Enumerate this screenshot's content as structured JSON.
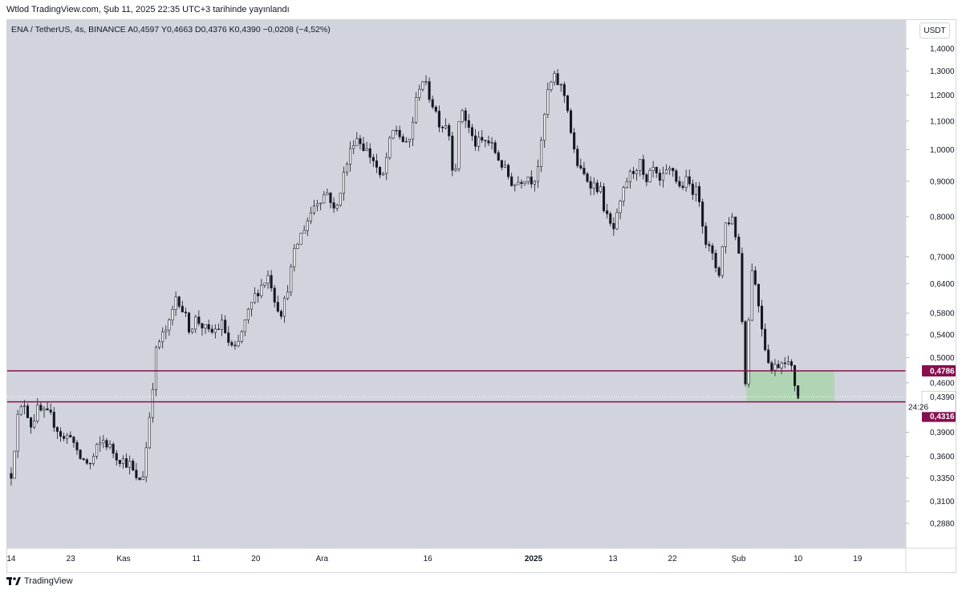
{
  "header": {
    "publish_line": "Wtlod TradingView.com, Şub 11, 2025 22:35 UTC+3 tarihinde yayınlandı"
  },
  "legend": {
    "symbol_line": "ENA / TetherUS, 4s, BINANCE  A0,4597  Y0,4663  D0,4376  K0,4390  −0,0208 (−4,52%)"
  },
  "currency_button": {
    "label": "USDT"
  },
  "footer": {
    "brand": "TradingView"
  },
  "colors": {
    "plot_bg": "#d1d4dc",
    "candle": "#131722",
    "level_line": "#880e4f",
    "zone_fill": "#a5d6a7",
    "label_bg": "#880e4f",
    "label_text": "#ffffff"
  },
  "chart_data": {
    "type": "candlestick",
    "symbol": "ENA / TetherUS",
    "interval": "4s",
    "exchange": "BINANCE",
    "ohlc_last": {
      "open": 0.4597,
      "high": 0.4663,
      "low": 0.4376,
      "close": 0.439,
      "change": "−0,0208",
      "change_pct": "−4,52%"
    },
    "y_scale": "log",
    "ylim": [
      0.265,
      1.54
    ],
    "y_ticks": [
      "1,4000",
      "1,3000",
      "1,2000",
      "1,1000",
      "1,0000",
      "0,9000",
      "0,8000",
      "0,7000",
      "0,6400",
      "0,5800",
      "0,5400",
      "0,5000",
      "0,4600",
      "0,3900",
      "0,3600",
      "0,3350",
      "0,3100",
      "0,2880"
    ],
    "y_tick_values": [
      1.4,
      1.3,
      1.2,
      1.1,
      1.0,
      0.9,
      0.8,
      0.7,
      0.64,
      0.58,
      0.54,
      0.5,
      0.46,
      0.39,
      0.36,
      0.335,
      0.31,
      0.288
    ],
    "x_ticks": [
      {
        "label": "14",
        "day": 0
      },
      {
        "label": "23",
        "day": 9
      },
      {
        "label": "Kas",
        "day": 17
      },
      {
        "label": "11",
        "day": 28
      },
      {
        "label": "20",
        "day": 37
      },
      {
        "label": "Ara",
        "day": 47
      },
      {
        "label": "16",
        "day": 63
      },
      {
        "label": "2025",
        "day": 79,
        "bold": true
      },
      {
        "label": "13",
        "day": 91
      },
      {
        "label": "22",
        "day": 100
      },
      {
        "label": "Şub",
        "day": 110
      },
      {
        "label": "10",
        "day": 119
      },
      {
        "label": "19",
        "day": 128
      }
    ],
    "x_range_days": [
      -0.6,
      135.3
    ],
    "price_path": [
      [
        0,
        0.34
      ],
      [
        1,
        0.41
      ],
      [
        2,
        0.43
      ],
      [
        3,
        0.4
      ],
      [
        4,
        0.42
      ],
      [
        6,
        0.41
      ],
      [
        8,
        0.38
      ],
      [
        9,
        0.39
      ],
      [
        10,
        0.36
      ],
      [
        12,
        0.35
      ],
      [
        13,
        0.37
      ],
      [
        14,
        0.38
      ],
      [
        16,
        0.36
      ],
      [
        18,
        0.35
      ],
      [
        19,
        0.33
      ],
      [
        20,
        0.34
      ],
      [
        21,
        0.42
      ],
      [
        22,
        0.52
      ],
      [
        24,
        0.56
      ],
      [
        25,
        0.62
      ],
      [
        27,
        0.55
      ],
      [
        28,
        0.57
      ],
      [
        30,
        0.54
      ],
      [
        32,
        0.56
      ],
      [
        33,
        0.52
      ],
      [
        34,
        0.51
      ],
      [
        35,
        0.55
      ],
      [
        37,
        0.62
      ],
      [
        39,
        0.66
      ],
      [
        40,
        0.6
      ],
      [
        41,
        0.58
      ],
      [
        43,
        0.72
      ],
      [
        44,
        0.76
      ],
      [
        46,
        0.84
      ],
      [
        48,
        0.87
      ],
      [
        49,
        0.8
      ],
      [
        50,
        0.9
      ],
      [
        52,
        1.05
      ],
      [
        53,
        1.02
      ],
      [
        55,
        0.96
      ],
      [
        56,
        0.89
      ],
      [
        57,
        1.0
      ],
      [
        58,
        1.08
      ],
      [
        60,
        1.0
      ],
      [
        61,
        1.14
      ],
      [
        62,
        1.28
      ],
      [
        64,
        1.15
      ],
      [
        65,
        1.08
      ],
      [
        66,
        1.1
      ],
      [
        67,
        0.9
      ],
      [
        68,
        1.16
      ],
      [
        70,
        1.02
      ],
      [
        72,
        1.03
      ],
      [
        73,
        1.0
      ],
      [
        75,
        0.92
      ],
      [
        76,
        0.89
      ],
      [
        78,
        0.92
      ],
      [
        79,
        0.9
      ],
      [
        80,
        0.98
      ],
      [
        81,
        1.2
      ],
      [
        82,
        1.27
      ],
      [
        83,
        1.24
      ],
      [
        84,
        1.18
      ],
      [
        85,
        1.0
      ],
      [
        86,
        0.93
      ],
      [
        88,
        0.89
      ],
      [
        89,
        0.88
      ],
      [
        90,
        0.8
      ],
      [
        91,
        0.76
      ],
      [
        92,
        0.82
      ],
      [
        93,
        0.9
      ],
      [
        95,
        0.96
      ],
      [
        96,
        0.88
      ],
      [
        97,
        0.94
      ],
      [
        98,
        0.89
      ],
      [
        99,
        0.92
      ],
      [
        100,
        0.94
      ],
      [
        101,
        0.88
      ],
      [
        102,
        0.9
      ],
      [
        104,
        0.86
      ],
      [
        105,
        0.74
      ],
      [
        106,
        0.7
      ],
      [
        107,
        0.66
      ],
      [
        108,
        0.78
      ],
      [
        109,
        0.8
      ],
      [
        110,
        0.72
      ],
      [
        111,
        0.46
      ],
      [
        112,
        0.68
      ],
      [
        113,
        0.6
      ],
      [
        114,
        0.52
      ],
      [
        115,
        0.48
      ],
      [
        117,
        0.5
      ],
      [
        118,
        0.48
      ],
      [
        119,
        0.44
      ]
    ],
    "candle_count": 240,
    "current_price": {
      "label": "0,4390",
      "value": 0.439,
      "countdown": "24:26"
    },
    "levels": [
      {
        "name": "resistance",
        "label": "0,4786",
        "value": 0.4786
      },
      {
        "name": "support",
        "label": "0,4316",
        "value": 0.4316
      }
    ],
    "zone": {
      "from_day": 111.2,
      "to_day": 124.5,
      "top": 0.4786,
      "bottom": 0.4316
    }
  }
}
